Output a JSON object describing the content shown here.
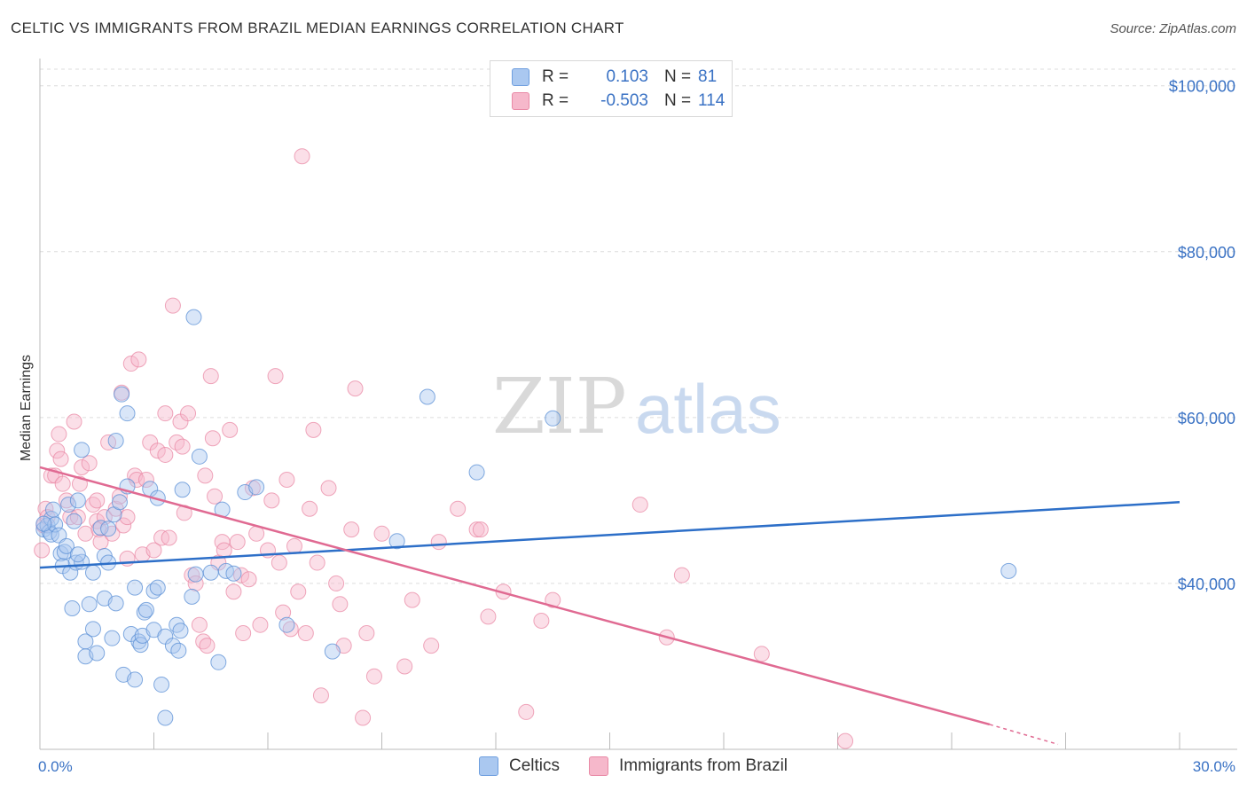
{
  "header": {
    "title": "CELTIC VS IMMIGRANTS FROM BRAZIL MEDIAN EARNINGS CORRELATION CHART",
    "source": "Source: ZipAtlas.com"
  },
  "watermark": {
    "zip": "ZIP",
    "atlas": "atlas"
  },
  "legend": {
    "rows": [
      {
        "r_label": "R =",
        "r_value": "0.103",
        "n_label": "N =",
        "n_value": "81",
        "color": "#aac8f0"
      },
      {
        "r_label": "R =",
        "r_value": "-0.503",
        "n_label": "N =",
        "n_value": "114",
        "color": "#f6b8cb"
      }
    ]
  },
  "bottom_legend": {
    "items": [
      {
        "label": "Celtics",
        "color": "#aac8f0"
      },
      {
        "label": "Immigrants from Brazil",
        "color": "#f6b8cb"
      }
    ]
  },
  "chart_data": {
    "type": "scatter",
    "title": "CELTIC VS IMMIGRANTS FROM BRAZIL MEDIAN EARNINGS CORRELATION CHART",
    "xlabel": "",
    "ylabel": "Median Earnings",
    "xlim": [
      0,
      30
    ],
    "ylim": [
      20000,
      102000
    ],
    "x_tick_labels": [
      "0.0%",
      "30.0%"
    ],
    "y_ticks": [
      40000,
      60000,
      80000,
      100000
    ],
    "y_tick_labels": [
      "$40,000",
      "$60,000",
      "$80,000",
      "$100,000"
    ],
    "grid": true,
    "series": [
      {
        "name": "Celtics",
        "color": "#5a8fd6",
        "fill": "#aac8f0",
        "trend": {
          "x": [
            0,
            30
          ],
          "y": [
            41900,
            49800
          ],
          "color": "#2d6fc8"
        },
        "points": [
          [
            0.1,
            46500
          ],
          [
            0.2,
            47000
          ],
          [
            0.25,
            46200
          ],
          [
            0.3,
            45900
          ],
          [
            0.3,
            47800
          ],
          [
            0.35,
            48900
          ],
          [
            0.4,
            47100
          ],
          [
            0.5,
            45800
          ],
          [
            0.55,
            43600
          ],
          [
            0.6,
            42100
          ],
          [
            0.65,
            43800
          ],
          [
            0.7,
            44500
          ],
          [
            0.75,
            49500
          ],
          [
            0.8,
            41300
          ],
          [
            0.85,
            37000
          ],
          [
            0.9,
            47500
          ],
          [
            0.95,
            42500
          ],
          [
            1.0,
            50000
          ],
          [
            1.1,
            56100
          ],
          [
            1.1,
            42600
          ],
          [
            1.2,
            33000
          ],
          [
            1.2,
            31200
          ],
          [
            1.3,
            37500
          ],
          [
            1.4,
            34500
          ],
          [
            1.4,
            41300
          ],
          [
            1.5,
            31600
          ],
          [
            1.6,
            46700
          ],
          [
            1.7,
            43300
          ],
          [
            1.7,
            38200
          ],
          [
            1.8,
            46600
          ],
          [
            1.8,
            42500
          ],
          [
            1.9,
            33400
          ],
          [
            1.95,
            48300
          ],
          [
            2.0,
            37600
          ],
          [
            2.0,
            57200
          ],
          [
            2.1,
            49800
          ],
          [
            2.15,
            62800
          ],
          [
            2.2,
            29000
          ],
          [
            2.3,
            60500
          ],
          [
            2.3,
            51700
          ],
          [
            2.4,
            33900
          ],
          [
            2.5,
            39500
          ],
          [
            2.5,
            28400
          ],
          [
            2.6,
            33000
          ],
          [
            2.65,
            32600
          ],
          [
            2.7,
            33700
          ],
          [
            2.75,
            36500
          ],
          [
            2.8,
            36800
          ],
          [
            2.9,
            51400
          ],
          [
            3.0,
            34400
          ],
          [
            3.0,
            39100
          ],
          [
            3.1,
            39500
          ],
          [
            3.1,
            50300
          ],
          [
            3.2,
            27800
          ],
          [
            3.3,
            23800
          ],
          [
            3.3,
            33600
          ],
          [
            3.5,
            32500
          ],
          [
            3.6,
            35000
          ],
          [
            3.65,
            31900
          ],
          [
            3.7,
            34300
          ],
          [
            3.75,
            51300
          ],
          [
            4.0,
            38400
          ],
          [
            4.05,
            72100
          ],
          [
            4.1,
            41100
          ],
          [
            4.2,
            55300
          ],
          [
            4.5,
            41300
          ],
          [
            4.7,
            30500
          ],
          [
            4.8,
            48900
          ],
          [
            4.9,
            41500
          ],
          [
            5.1,
            41200
          ],
          [
            5.4,
            51000
          ],
          [
            5.7,
            51600
          ],
          [
            6.5,
            35000
          ],
          [
            7.7,
            31800
          ],
          [
            9.4,
            45100
          ],
          [
            10.2,
            62500
          ],
          [
            11.5,
            53400
          ],
          [
            13.5,
            59900
          ],
          [
            25.5,
            41500
          ],
          [
            0.1,
            47200
          ],
          [
            1.0,
            43500
          ]
        ]
      },
      {
        "name": "Immigrants from Brazil",
        "color": "#e98aa6",
        "fill": "#f6b8cb",
        "trend": {
          "x": [
            0,
            25
          ],
          "y": [
            54000,
            23000
          ],
          "dash_to": [
            26.8,
            20600
          ],
          "color": "#e06a92"
        },
        "points": [
          [
            0.05,
            44000
          ],
          [
            0.1,
            47000
          ],
          [
            0.15,
            49000
          ],
          [
            0.2,
            48000
          ],
          [
            0.3,
            53000
          ],
          [
            0.4,
            53000
          ],
          [
            0.45,
            56000
          ],
          [
            0.5,
            58000
          ],
          [
            0.55,
            55000
          ],
          [
            0.6,
            52000
          ],
          [
            0.7,
            50000
          ],
          [
            0.8,
            48000
          ],
          [
            0.9,
            59500
          ],
          [
            1.0,
            48000
          ],
          [
            1.05,
            52000
          ],
          [
            1.1,
            54000
          ],
          [
            1.2,
            46000
          ],
          [
            1.3,
            54500
          ],
          [
            1.4,
            49500
          ],
          [
            1.5,
            47500
          ],
          [
            1.5,
            50000
          ],
          [
            1.55,
            46500
          ],
          [
            1.6,
            45000
          ],
          [
            1.7,
            48000
          ],
          [
            1.8,
            57000
          ],
          [
            1.9,
            46000
          ],
          [
            2.0,
            49000
          ],
          [
            2.1,
            50500
          ],
          [
            2.15,
            63000
          ],
          [
            2.2,
            47000
          ],
          [
            2.3,
            48000
          ],
          [
            2.4,
            66500
          ],
          [
            2.5,
            53000
          ],
          [
            2.55,
            52500
          ],
          [
            2.6,
            67000
          ],
          [
            2.7,
            43500
          ],
          [
            2.8,
            52500
          ],
          [
            2.9,
            57000
          ],
          [
            3.0,
            44000
          ],
          [
            3.1,
            56000
          ],
          [
            3.2,
            45500
          ],
          [
            3.3,
            60500
          ],
          [
            3.3,
            55500
          ],
          [
            3.4,
            45500
          ],
          [
            3.5,
            73500
          ],
          [
            3.6,
            57000
          ],
          [
            3.7,
            59500
          ],
          [
            3.75,
            56500
          ],
          [
            3.8,
            48500
          ],
          [
            3.9,
            60500
          ],
          [
            4.0,
            41000
          ],
          [
            4.1,
            40000
          ],
          [
            4.2,
            35000
          ],
          [
            4.3,
            33000
          ],
          [
            4.35,
            53000
          ],
          [
            4.4,
            32500
          ],
          [
            4.5,
            65000
          ],
          [
            4.55,
            57500
          ],
          [
            4.6,
            50500
          ],
          [
            4.7,
            42500
          ],
          [
            4.8,
            45000
          ],
          [
            4.85,
            44000
          ],
          [
            5.0,
            58500
          ],
          [
            5.1,
            39000
          ],
          [
            5.2,
            45000
          ],
          [
            5.3,
            41000
          ],
          [
            5.35,
            34000
          ],
          [
            5.5,
            40500
          ],
          [
            5.6,
            51500
          ],
          [
            5.7,
            46000
          ],
          [
            5.8,
            35000
          ],
          [
            6.0,
            44000
          ],
          [
            6.1,
            50000
          ],
          [
            6.2,
            65000
          ],
          [
            6.3,
            42500
          ],
          [
            6.4,
            36500
          ],
          [
            6.5,
            52500
          ],
          [
            6.6,
            34500
          ],
          [
            6.7,
            44500
          ],
          [
            6.8,
            39000
          ],
          [
            6.9,
            91500
          ],
          [
            7.0,
            34000
          ],
          [
            7.1,
            49000
          ],
          [
            7.2,
            58500
          ],
          [
            7.3,
            42500
          ],
          [
            7.4,
            26500
          ],
          [
            7.6,
            51500
          ],
          [
            7.8,
            40000
          ],
          [
            7.9,
            37500
          ],
          [
            8.0,
            32500
          ],
          [
            8.2,
            46500
          ],
          [
            8.3,
            63500
          ],
          [
            8.5,
            23800
          ],
          [
            8.6,
            34000
          ],
          [
            8.8,
            28800
          ],
          [
            9.0,
            46000
          ],
          [
            9.6,
            30000
          ],
          [
            9.8,
            38000
          ],
          [
            10.3,
            32500
          ],
          [
            10.5,
            45000
          ],
          [
            11.0,
            49000
          ],
          [
            11.5,
            46500
          ],
          [
            11.6,
            46500
          ],
          [
            11.8,
            36000
          ],
          [
            12.2,
            39000
          ],
          [
            12.8,
            24500
          ],
          [
            13.2,
            35500
          ],
          [
            13.5,
            38000
          ],
          [
            15.8,
            49500
          ],
          [
            16.5,
            33500
          ],
          [
            16.9,
            41000
          ],
          [
            19.0,
            31500
          ],
          [
            21.2,
            21000
          ],
          [
            2.3,
            43000
          ]
        ]
      }
    ]
  }
}
